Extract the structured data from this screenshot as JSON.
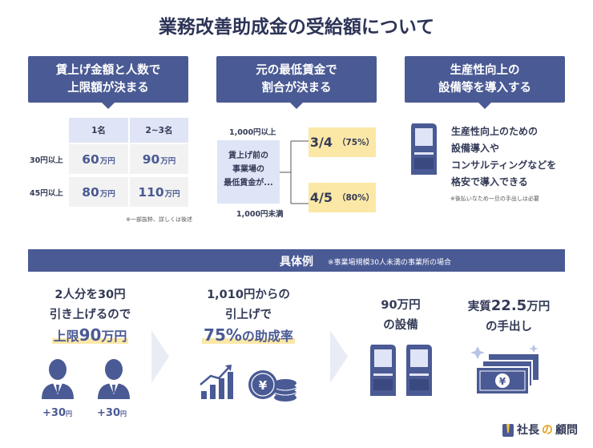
{
  "title": "業務改善助成金の受給額について",
  "headers": [
    {
      "line1": "賃上げ金額と人数で",
      "line2": "上限額が決まる"
    },
    {
      "line1": "元の最低賃金で",
      "line2": "割合が決まる"
    },
    {
      "line1": "生産性向上の",
      "line2": "設備等を導入する"
    }
  ],
  "table": {
    "columns": [
      "1名",
      "2~3名"
    ],
    "rows": [
      {
        "label": "30円以上",
        "values": [
          {
            "num": "60",
            "unit": "万円"
          },
          {
            "num": "90",
            "unit": "万円"
          }
        ]
      },
      {
        "label": "45円以上",
        "values": [
          {
            "num": "80",
            "unit": "万円"
          },
          {
            "num": "110",
            "unit": "万円"
          }
        ]
      }
    ],
    "note": "※一部抜粋、詳しくは後述"
  },
  "ratio": {
    "box_lines": [
      "賃上げ前の",
      "事業場の",
      "最低賃金が..."
    ],
    "upper_label": "1,000円以上",
    "lower_label": "1,000円未満",
    "upper_frac": "3/4",
    "upper_pct": "（75%）",
    "lower_frac": "4/5",
    "lower_pct": "（80%）"
  },
  "equipment": {
    "lines": [
      "生産性向上のための",
      "設備導入や",
      "コンサルティングなどを",
      "格安で導入できる"
    ],
    "note": "※後払いなため一旦の手出しは必要"
  },
  "example": {
    "label": "具体例",
    "note": "※事業場規模30人未満の事業所の場合",
    "step1": {
      "line1": "2人分を30円",
      "line2": "引き上げるので",
      "hl_pre": "上限",
      "hl_num": "90",
      "hl_post": "万円",
      "plus1": "+30",
      "plus2": "+30",
      "plus_unit": "円"
    },
    "step2": {
      "line1": "1,010円からの",
      "line2": "引上げで",
      "hl_num": "75%",
      "hl_post": "の助成率"
    },
    "step3": {
      "line1": "90万円",
      "line2": "の設備"
    },
    "step4": {
      "pre": "実質",
      "num": "22.5",
      "post": "万円",
      "line2": "の手出し"
    }
  },
  "logo": {
    "text1": "社長",
    "text2": "の",
    "text3": "顧問"
  },
  "colors": {
    "navy": "#4a5a94",
    "cream": "#fbe8a6",
    "light_blue": "#dfe4f6",
    "gray_cell": "#f2f2f2"
  },
  "icons": [
    "kiosk-icon",
    "arrow-right-icon",
    "person-icon",
    "bar-chart-icon",
    "coins-icon",
    "banknote-icon",
    "sparkle-icon"
  ]
}
